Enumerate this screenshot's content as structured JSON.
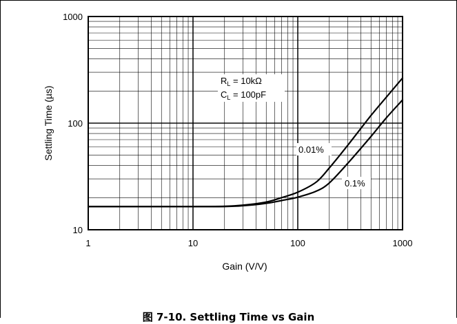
{
  "chart_data": {
    "type": "line",
    "title": "",
    "xlabel": "Gain (V/V)",
    "ylabel": "Settling Time (µs)",
    "x_scale": "log",
    "y_scale": "log",
    "xlim": [
      1,
      1000
    ],
    "ylim": [
      10,
      1000
    ],
    "grid": true,
    "x_ticks": [
      "1",
      "10",
      "100",
      "1000"
    ],
    "y_ticks": [
      "10",
      "100",
      "1000"
    ],
    "conditions": {
      "rl_label": "R",
      "rl_sub": "L",
      "rl_value": " = 10kΩ",
      "cl_label": "C",
      "cl_sub": "L",
      "cl_value": " = 100pF"
    },
    "series": [
      {
        "name": "0.01%",
        "x": [
          1,
          2,
          5,
          10,
          20,
          30,
          50,
          70,
          100,
          150,
          200,
          300,
          500,
          700,
          1000
        ],
        "y": [
          16.5,
          16.5,
          16.5,
          16.5,
          16.6,
          17.0,
          18.2,
          20.0,
          22.5,
          28.0,
          38.0,
          62.0,
          118.0,
          175.0,
          265.0
        ]
      },
      {
        "name": "0.1%",
        "x": [
          1,
          2,
          5,
          10,
          20,
          30,
          50,
          70,
          100,
          150,
          200,
          300,
          500,
          700,
          1000
        ],
        "y": [
          16.5,
          16.5,
          16.5,
          16.5,
          16.5,
          16.8,
          17.7,
          18.8,
          20.2,
          23.0,
          27.5,
          42.0,
          75.0,
          112.0,
          165.0
        ]
      }
    ]
  },
  "caption": "图 7-10. Settling Time vs Gain"
}
